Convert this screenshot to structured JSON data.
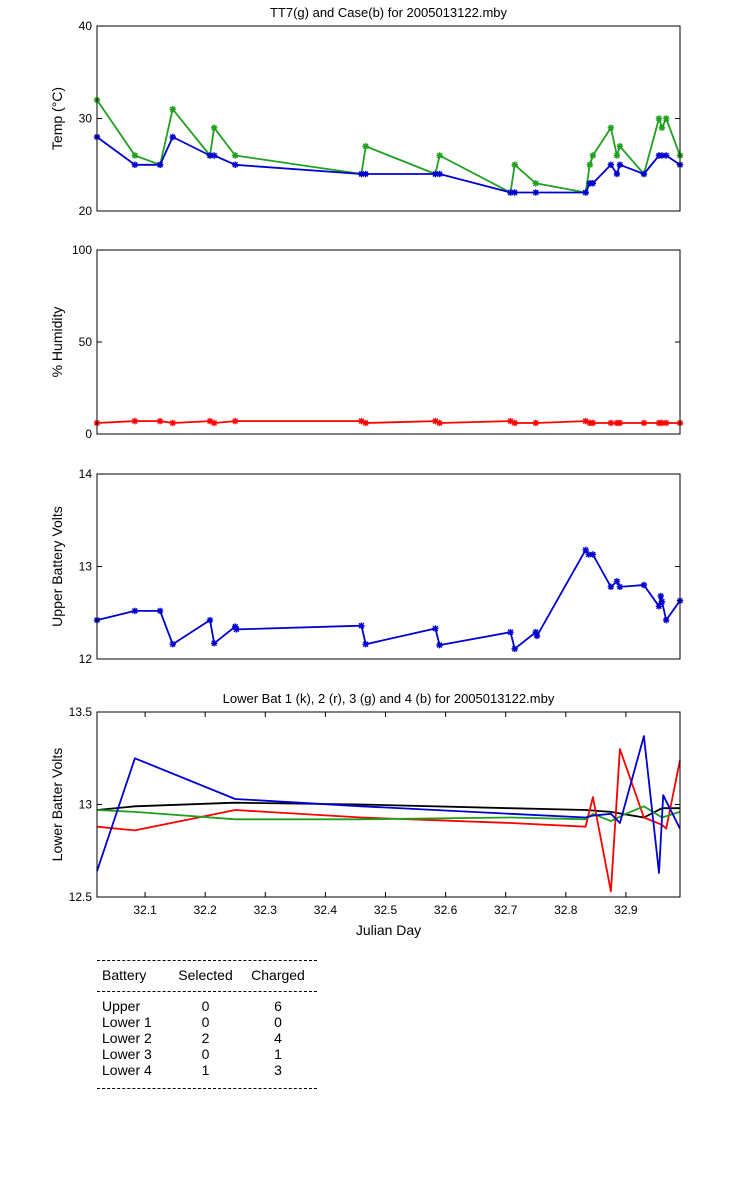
{
  "chart_data": [
    {
      "id": "temp",
      "type": "line",
      "title": "TT7(g) and Case(b) for 2005013122.mby",
      "ylabel": "Temp (°C)",
      "xlabel": "",
      "xlim": [
        32.02,
        32.99
      ],
      "ylim": [
        20,
        40
      ],
      "yticks": [
        20,
        30,
        40
      ],
      "xticks": [],
      "series": [
        {
          "color": "#1fa01f",
          "markers": true,
          "x": [
            32.02,
            32.083,
            32.125,
            32.146,
            32.208,
            32.215,
            32.25,
            32.46,
            32.467,
            32.583,
            32.59,
            32.708,
            32.715,
            32.75,
            32.833,
            32.84,
            32.845,
            32.875,
            32.885,
            32.89,
            32.93,
            32.955,
            32.96,
            32.967,
            32.99
          ],
          "y": [
            32,
            26,
            25,
            31,
            26,
            29,
            26,
            24,
            27,
            24,
            26,
            22,
            25,
            23,
            22,
            25,
            26,
            29,
            26,
            27,
            24,
            30,
            29,
            30,
            26
          ]
        },
        {
          "color": "#0000d0",
          "markers": true,
          "x": [
            32.02,
            32.083,
            32.125,
            32.146,
            32.208,
            32.215,
            32.25,
            32.46,
            32.467,
            32.583,
            32.59,
            32.708,
            32.715,
            32.75,
            32.833,
            32.84,
            32.845,
            32.875,
            32.885,
            32.89,
            32.93,
            32.955,
            32.96,
            32.967,
            32.99
          ],
          "y": [
            28,
            25,
            25,
            28,
            26,
            26,
            25,
            24,
            24,
            24,
            24,
            22,
            22,
            22,
            22,
            23,
            23,
            25,
            24,
            25,
            24,
            26,
            26,
            26,
            25
          ]
        }
      ]
    },
    {
      "id": "humidity",
      "type": "line",
      "title": "",
      "ylabel": "% Humidity",
      "xlabel": "",
      "xlim": [
        32.02,
        32.99
      ],
      "ylim": [
        0,
        100
      ],
      "yticks": [
        0,
        50,
        100
      ],
      "xticks": [],
      "series": [
        {
          "color": "#ff0000",
          "markers": true,
          "x": [
            32.02,
            32.083,
            32.125,
            32.146,
            32.208,
            32.215,
            32.25,
            32.46,
            32.467,
            32.583,
            32.59,
            32.708,
            32.715,
            32.75,
            32.833,
            32.84,
            32.845,
            32.875,
            32.885,
            32.89,
            32.93,
            32.955,
            32.96,
            32.967,
            32.99
          ],
          "y": [
            6,
            7,
            7,
            6,
            7,
            6,
            7,
            7,
            6,
            7,
            6,
            7,
            6,
            6,
            7,
            6,
            6,
            6,
            6,
            6,
            6,
            6,
            6,
            6,
            6
          ]
        }
      ]
    },
    {
      "id": "upper-battery",
      "type": "line",
      "title": "",
      "ylabel": "Upper Battery Volts",
      "xlabel": "",
      "xlim": [
        32.02,
        32.99
      ],
      "ylim": [
        12,
        14
      ],
      "yticks": [
        12,
        13,
        14
      ],
      "xticks": [],
      "series": [
        {
          "color": "#0000d0",
          "markers": true,
          "x": [
            32.02,
            32.083,
            32.125,
            32.146,
            32.208,
            32.215,
            32.25,
            32.252,
            32.46,
            32.467,
            32.583,
            32.59,
            32.708,
            32.715,
            32.75,
            32.752,
            32.833,
            32.838,
            32.845,
            32.875,
            32.885,
            32.89,
            32.93,
            32.955,
            32.958,
            32.96,
            32.967,
            32.99
          ],
          "y": [
            12.42,
            12.52,
            12.52,
            12.16,
            12.42,
            12.17,
            12.35,
            12.32,
            12.36,
            12.16,
            12.33,
            12.15,
            12.29,
            12.11,
            12.29,
            12.25,
            13.18,
            13.13,
            13.13,
            12.78,
            12.84,
            12.78,
            12.8,
            12.57,
            12.68,
            12.62,
            12.42,
            12.63
          ]
        }
      ]
    },
    {
      "id": "lower-battery",
      "type": "line",
      "title": "Lower Bat 1 (k), 2 (r), 3 (g) and 4 (b) for 2005013122.mby",
      "ylabel": "Lower Batter Volts",
      "xlabel": "Julian Day",
      "xlim": [
        32.02,
        32.99
      ],
      "ylim": [
        12.5,
        13.5
      ],
      "yticks": [
        12.5,
        13,
        13.5
      ],
      "xticks": [
        32.1,
        32.2,
        32.3,
        32.4,
        32.5,
        32.6,
        32.7,
        32.8,
        32.9
      ],
      "xticklabels": [
        "32.1",
        "32.2",
        "32.3",
        "32.4",
        "32.5",
        "32.6",
        "32.7",
        "32.8",
        "32.9"
      ],
      "yticklabels": [
        "12.5",
        "13",
        "13.5"
      ],
      "series": [
        {
          "color": "#000000",
          "markers": false,
          "x": [
            32.02,
            32.083,
            32.25,
            32.46,
            32.708,
            32.833,
            32.875,
            32.93,
            32.96,
            32.99
          ],
          "y": [
            12.97,
            12.99,
            13.01,
            13.0,
            12.98,
            12.97,
            12.96,
            12.93,
            12.98,
            12.98
          ]
        },
        {
          "color": "#ff0000",
          "markers": false,
          "x": [
            32.02,
            32.083,
            32.25,
            32.46,
            32.708,
            32.833,
            32.845,
            32.875,
            32.89,
            32.93,
            32.96,
            32.967,
            32.99
          ],
          "y": [
            12.88,
            12.86,
            12.97,
            12.93,
            12.9,
            12.88,
            13.04,
            12.53,
            13.3,
            12.93,
            12.89,
            12.87,
            13.24
          ]
        },
        {
          "color": "#1fa01f",
          "markers": false,
          "x": [
            32.02,
            32.083,
            32.25,
            32.46,
            32.708,
            32.833,
            32.845,
            32.875,
            32.9,
            32.93,
            32.96,
            32.99
          ],
          "y": [
            12.97,
            12.96,
            12.92,
            12.92,
            12.93,
            12.92,
            12.95,
            12.91,
            12.95,
            12.99,
            12.93,
            12.96
          ]
        },
        {
          "color": "#0000d0",
          "markers": false,
          "x": [
            32.02,
            32.083,
            32.25,
            32.46,
            32.708,
            32.833,
            32.845,
            32.875,
            32.89,
            32.93,
            32.955,
            32.962,
            32.99
          ],
          "y": [
            12.64,
            13.25,
            13.03,
            12.99,
            12.95,
            12.93,
            12.94,
            12.95,
            12.9,
            13.37,
            12.63,
            13.05,
            12.87
          ]
        }
      ]
    }
  ],
  "battery_table": {
    "headers": [
      "Battery",
      "Selected",
      "Charged"
    ],
    "rows": [
      {
        "battery": "Upper",
        "selected": "0",
        "charged": "6"
      },
      {
        "battery": "Lower 1",
        "selected": "0",
        "charged": "0"
      },
      {
        "battery": "Lower 2",
        "selected": "2",
        "charged": "4"
      },
      {
        "battery": "Lower 3",
        "selected": "0",
        "charged": "1"
      },
      {
        "battery": "Lower 4",
        "selected": "1",
        "charged": "3"
      }
    ]
  }
}
